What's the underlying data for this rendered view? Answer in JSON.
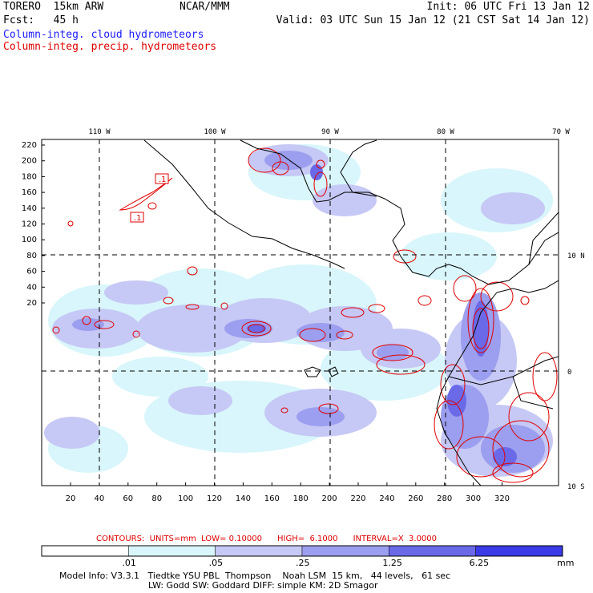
{
  "header": {
    "left_line1": "TORERO  15km ARW",
    "left_line2": "Fcst:   45 h",
    "center": "NCAR/MMM",
    "right_line1": "Init: 06 UTC Fri 13 Jan 12",
    "right_line2": "Valid: 03 UTC Sun 15 Jan 12 (21 CST Sat 14 Jan 12)",
    "field_cloud": "Column-integ. cloud hydrometeors",
    "field_precip": "Column-integ. precip. hydrometeors"
  },
  "map": {
    "lon_labels": [
      "110 W",
      "100 W",
      "90 W",
      "80 W",
      "70 W"
    ],
    "lat_labels": [
      "10 N",
      "0",
      "10 S"
    ],
    "y_ticks": [
      "220",
      "200",
      "180",
      "160",
      "140",
      "120",
      "100",
      "80",
      "60",
      "40",
      "20"
    ],
    "x_ticks": [
      "20",
      "40",
      "60",
      "80",
      "100",
      "120",
      "140",
      "160",
      "180",
      "200",
      "220",
      "240",
      "260",
      "280",
      "300",
      "320"
    ],
    "contour_labels": [
      ".1",
      ".1"
    ]
  },
  "contours_info": {
    "label": "CONTOURS:  UNITS=mm  LOW= 0.10000      HIGH=  6.1000      INTERVAL=X  3.0000"
  },
  "colorbar": {
    "colors": [
      "#ffffff",
      "#d8f6fb",
      "#c6c8f5",
      "#9c9eef",
      "#6a6ae9",
      "#3a3ae6"
    ],
    "labels": [
      ".01",
      ".05",
      ".25",
      "1.25",
      "6.25"
    ],
    "units": "mm"
  },
  "footer": {
    "line1": "Model Info: V3.3.1   Tiedtke YSU PBL  Thompson    Noah LSM  15 km,   44 levels,   61 sec",
    "line2": "LW: Godd SW: Goddard DIFF: simple KM: 2D Smagor"
  }
}
